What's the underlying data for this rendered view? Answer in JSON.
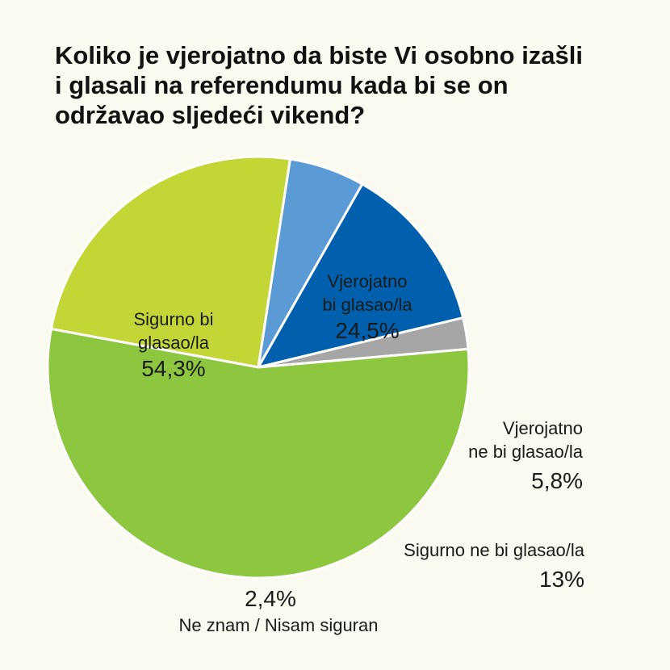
{
  "title_lines": [
    "Koliko je vjerojatno da biste Vi osobno izašli",
    "i glasali na referendumu kada bi se on",
    "održavao sljedeći vikend?"
  ],
  "chart_data": {
    "type": "pie",
    "title": "Koliko je vjerojatno da biste Vi osobno izašli i glasali na referendumu kada bi se on održavao sljedeći vikend?",
    "unit": "%",
    "slices": [
      {
        "label_lines": [
          "Vjerojatno",
          "bi glasao/la"
        ],
        "value": 24.5,
        "value_label": "24,5%",
        "color": "#c3d636"
      },
      {
        "label_lines": [
          "Vjerojatno",
          "ne bi glasao/la"
        ],
        "value": 5.8,
        "value_label": "5,8%",
        "color": "#5b9bd5"
      },
      {
        "label_lines": [
          "Sigurno ne bi glasao/la"
        ],
        "value": 13,
        "value_label": "13%",
        "color": "#0060ae"
      },
      {
        "label_lines": [
          "Ne znam / Nisam siguran"
        ],
        "value": 2.4,
        "value_label": "2,4%",
        "color": "#a6a6a6"
      },
      {
        "label_lines": [
          "Sigurno bi",
          "glasao/la"
        ],
        "value": 54.3,
        "value_label": "54,3%",
        "color": "#8dc63f"
      }
    ]
  }
}
